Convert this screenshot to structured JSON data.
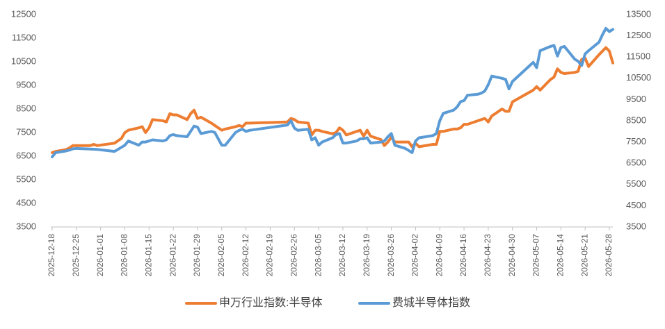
{
  "chart_data": {
    "type": "line",
    "x": [
      "2025-12-18",
      "2025-12-19",
      "2025-12-22",
      "2025-12-23",
      "2025-12-24",
      "2025-12-25",
      "2025-12-26",
      "2025-12-29",
      "2025-12-30",
      "2025-12-31",
      "2026-01-05",
      "2026-01-06",
      "2026-01-07",
      "2026-01-08",
      "2026-01-09",
      "2026-01-12",
      "2026-01-13",
      "2026-01-14",
      "2026-01-15",
      "2026-01-16",
      "2026-01-19",
      "2026-01-20",
      "2026-01-21",
      "2026-01-22",
      "2026-01-23",
      "2026-01-26",
      "2026-01-27",
      "2026-01-28",
      "2026-01-29",
      "2026-01-30",
      "2026-02-02",
      "2026-02-03",
      "2026-02-04",
      "2026-02-05",
      "2026-02-06",
      "2026-02-09",
      "2026-02-10",
      "2026-02-11",
      "2026-02-12",
      "2026-02-13",
      "2026-02-24",
      "2026-02-25",
      "2026-02-26",
      "2026-02-27",
      "2026-03-02",
      "2026-03-03",
      "2026-03-04",
      "2026-03-05",
      "2026-03-06",
      "2026-03-09",
      "2026-03-10",
      "2026-03-11",
      "2026-03-12",
      "2026-03-13",
      "2026-03-16",
      "2026-03-17",
      "2026-03-18",
      "2026-03-19",
      "2026-03-20",
      "2026-03-23",
      "2026-03-24",
      "2026-03-25",
      "2026-03-26",
      "2026-03-27",
      "2026-03-30",
      "2026-03-31",
      "2026-04-01",
      "2026-04-02",
      "2026-04-03",
      "2026-04-07",
      "2026-04-08",
      "2026-04-09",
      "2026-04-10",
      "2026-04-13",
      "2026-04-14",
      "2026-04-15",
      "2026-04-16",
      "2026-04-17",
      "2026-04-20",
      "2026-04-21",
      "2026-04-22",
      "2026-04-23",
      "2026-04-24",
      "2026-04-27",
      "2026-04-28",
      "2026-04-29",
      "2026-04-30",
      "2026-05-06",
      "2026-05-07",
      "2026-05-08",
      "2026-05-11",
      "2026-05-12",
      "2026-05-13",
      "2026-05-14",
      "2026-05-15",
      "2026-05-18",
      "2026-05-19",
      "2026-05-20",
      "2026-05-21",
      "2026-05-22",
      "2026-05-25",
      "2026-05-26",
      "2026-05-27",
      "2026-05-28",
      "2026-05-29"
    ],
    "series": [
      {
        "name": "申万行业指数:半导体",
        "color": "#ed7d31",
        "values": [
          6650,
          6700,
          6780,
          6850,
          6950,
          6950,
          6950,
          6950,
          7000,
          6950,
          7050,
          7150,
          7250,
          7500,
          7600,
          7700,
          7750,
          7500,
          7700,
          8050,
          8000,
          7950,
          8300,
          8250,
          8250,
          8050,
          8300,
          8450,
          8100,
          8150,
          7900,
          7800,
          7700,
          7600,
          7650,
          7750,
          7800,
          7750,
          7900,
          7900,
          7950,
          8100,
          8050,
          7950,
          7900,
          7400,
          7600,
          7600,
          7550,
          7450,
          7500,
          7700,
          7600,
          7400,
          7550,
          7600,
          7350,
          7600,
          7350,
          7200,
          6950,
          7100,
          7300,
          7100,
          7100,
          7100,
          6900,
          7050,
          6900,
          7000,
          7000,
          7550,
          7550,
          7650,
          7650,
          7700,
          7850,
          7850,
          8000,
          8050,
          8100,
          7950,
          8200,
          8500,
          8400,
          8400,
          8800,
          9300,
          9450,
          9300,
          9750,
          9850,
          10200,
          10050,
          10000,
          10050,
          10100,
          10600,
          10650,
          10300,
          10800,
          10950,
          11100,
          10950,
          10450
        ]
      },
      {
        "name": "费城半导体指数",
        "color": "#5b9bd5",
        "axis": "y2",
        "values": [
          6800,
          7000,
          7080,
          7120,
          7180,
          7200,
          7190,
          7170,
          7160,
          7150,
          7060,
          7150,
          7250,
          7350,
          7550,
          7350,
          7500,
          7500,
          7550,
          7600,
          7550,
          7600,
          7800,
          7850,
          7800,
          7750,
          8000,
          8250,
          8200,
          7900,
          8000,
          7950,
          7650,
          7350,
          7350,
          7950,
          8050,
          8100,
          8000,
          8050,
          8300,
          8500,
          8150,
          8050,
          8100,
          7600,
          7700,
          7350,
          7500,
          7700,
          7850,
          7900,
          7450,
          7450,
          7550,
          7650,
          7650,
          7700,
          7450,
          7500,
          7550,
          7750,
          7900,
          7350,
          7200,
          7100,
          7000,
          7550,
          7700,
          7800,
          7900,
          8500,
          8850,
          9000,
          9150,
          9400,
          9450,
          9700,
          9750,
          9800,
          9900,
          10200,
          10600,
          10500,
          10450,
          10000,
          10350,
          11250,
          11000,
          11800,
          12000,
          12050,
          11550,
          11950,
          12000,
          11400,
          11300,
          11100,
          11650,
          11800,
          12200,
          12550,
          12850,
          12700,
          12800
        ]
      }
    ],
    "xlim": [
      "2025-12-18",
      "2026-05-29"
    ],
    "xticks": [
      "2025-12-18",
      "2025-12-25",
      "2026-01-01",
      "2026-01-08",
      "2026-01-15",
      "2026-01-22",
      "2026-01-29",
      "2026-02-05",
      "2026-02-12",
      "2026-02-19",
      "2026-02-26",
      "2026-03-05",
      "2026-03-12",
      "2026-03-19",
      "2026-03-26",
      "2026-04-02",
      "2026-04-09",
      "2026-04-16",
      "2026-04-23",
      "2026-04-30",
      "2026-05-07",
      "2026-05-14",
      "2026-05-21",
      "2026-05-28"
    ],
    "ylim": [
      3500,
      12500
    ],
    "yticks": [
      3500,
      4500,
      5500,
      6500,
      7500,
      8500,
      9500,
      10500,
      11500,
      12500
    ],
    "y2lim": [
      3500,
      13500
    ],
    "y2ticks": [
      3500,
      4500,
      5500,
      6500,
      7500,
      8500,
      9500,
      10500,
      11500,
      12500,
      13500
    ],
    "grid": false,
    "legend": "bottom"
  }
}
